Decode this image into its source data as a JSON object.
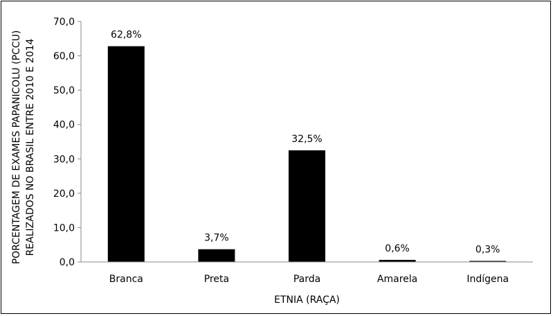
{
  "chart_data": {
    "type": "bar",
    "categories": [
      "Branca",
      "Preta",
      "Parda",
      "Amarela",
      "Indígena"
    ],
    "values": [
      62.8,
      3.7,
      32.5,
      0.6,
      0.3
    ],
    "data_labels": [
      "62,8%",
      "3,7%",
      "32,5%",
      "0,6%",
      "0,3%"
    ],
    "xlabel": "ETNIA (RAÇA)",
    "ylabel_lines": [
      "PORCENTAGEM DE EXAMES PAPANICOLU (PCCU)",
      "REALIZADOS NO BRASIL ENTRE 2010 E 2014"
    ],
    "ylim": [
      0,
      70
    ],
    "yticks": [
      0,
      10,
      20,
      30,
      40,
      50,
      60,
      70
    ],
    "ytick_labels": [
      "0,0",
      "10,0",
      "20,0",
      "30,0",
      "40,0",
      "50,0",
      "60,0",
      "70,0"
    ],
    "grid": false,
    "legend": "none",
    "bar_color": "#000000"
  }
}
